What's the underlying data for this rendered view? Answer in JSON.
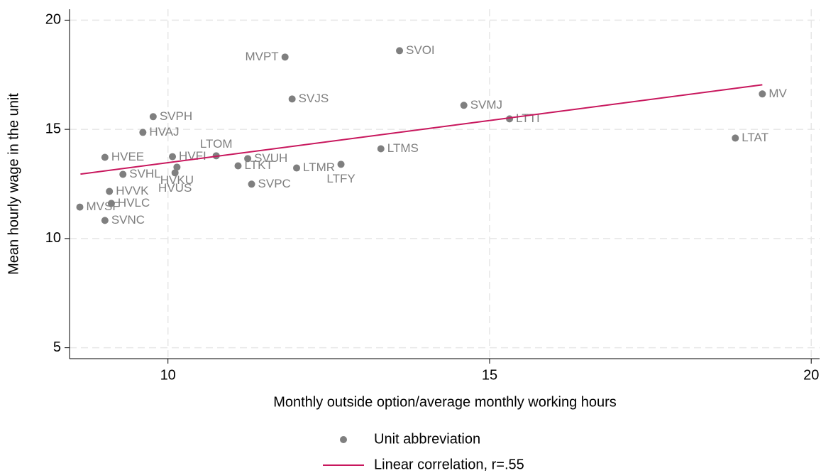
{
  "chart_data": {
    "type": "scatter",
    "xlabel": "Monthly outside option/average monthly working hours",
    "ylabel": "Mean hourly wage in the unit",
    "xlim": [
      8.47,
      20.13
    ],
    "ylim": [
      4.5,
      20.5
    ],
    "xticks": [
      10,
      15,
      20
    ],
    "yticks": [
      5,
      10,
      15,
      20
    ],
    "grid": true,
    "series": [
      {
        "name": "Unit abbreviation",
        "type": "scatter",
        "color": "#7f7f7f",
        "labels": [
          "MVPT",
          "SVOI",
          "SVJS",
          "SVMJ",
          "LTTI",
          "MV",
          "LTAT",
          "LTMS",
          "SVPH",
          "HVAJ",
          "HVEE",
          "HVFI",
          "LTOM",
          "SVUH",
          "LTKT",
          "LTMR",
          "LTFY",
          "SVHL",
          "HVKU",
          "HVUS",
          "SVPC",
          "HVVK",
          "HVLC",
          "MVSF",
          "SVNC"
        ],
        "x": [
          11.82,
          13.6,
          11.93,
          14.6,
          15.31,
          19.24,
          18.82,
          13.31,
          9.77,
          9.61,
          9.02,
          10.07,
          10.75,
          11.24,
          11.09,
          12.0,
          12.69,
          9.3,
          10.14,
          10.11,
          11.3,
          9.09,
          9.12,
          8.63,
          9.02
        ],
        "values": [
          18.31,
          18.6,
          16.39,
          16.1,
          15.48,
          16.62,
          14.6,
          14.11,
          15.58,
          14.86,
          13.72,
          13.75,
          13.79,
          13.66,
          13.33,
          13.23,
          13.4,
          12.94,
          13.27,
          13.01,
          12.49,
          12.16,
          11.61,
          11.44,
          10.83
        ]
      },
      {
        "name": "Linear correlation, r=.55",
        "type": "line",
        "color": "#c8175d",
        "x": [
          8.64,
          19.24
        ],
        "values": [
          12.95,
          17.04
        ]
      }
    ]
  }
}
